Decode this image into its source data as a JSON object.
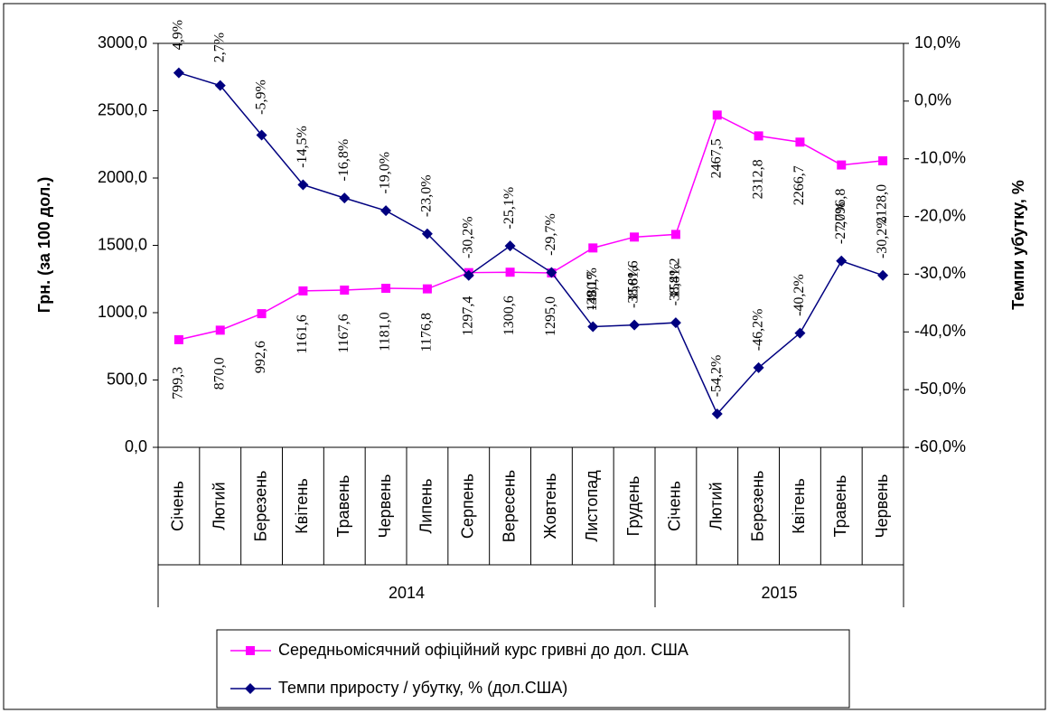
{
  "chart_data": {
    "type": "line",
    "categories": [
      "Січень",
      "Лютий",
      "Березень",
      "Квітень",
      "Травень",
      "Червень",
      "Липень",
      "Серпень",
      "Вересень",
      "Жовтень",
      "Листопад",
      "Грудень",
      "Січень",
      "Лютий",
      "Березень",
      "Квітень",
      "Травень",
      "Червень"
    ],
    "year_groups": [
      {
        "label": "2014",
        "span": 12
      },
      {
        "label": "2015",
        "span": 6
      }
    ],
    "ylabel": "Грн. (за 100 дол.)",
    "y2label": "Темпи убутку, %",
    "ylim": [
      0,
      3000
    ],
    "yticks": [
      {
        "value": 0,
        "label": "0,0"
      },
      {
        "value": 500,
        "label": "500,0"
      },
      {
        "value": 1000,
        "label": "1000,0"
      },
      {
        "value": 1500,
        "label": "1500,0"
      },
      {
        "value": 2000,
        "label": "2000,0"
      },
      {
        "value": 2500,
        "label": "2500,0"
      },
      {
        "value": 3000,
        "label": "3000,0"
      }
    ],
    "y2lim": [
      -60,
      10
    ],
    "y2ticks": [
      {
        "value": -60,
        "label": "-60,0%"
      },
      {
        "value": -50,
        "label": "-50,0%"
      },
      {
        "value": -40,
        "label": "-40,0%"
      },
      {
        "value": -30,
        "label": "-30,0%"
      },
      {
        "value": -20,
        "label": "-20,0%"
      },
      {
        "value": -10,
        "label": "-10,0%"
      },
      {
        "value": 0,
        "label": "0,0%"
      },
      {
        "value": 10,
        "label": "10,0%"
      }
    ],
    "grid": false,
    "legend": "bottom",
    "series": [
      {
        "name": "Середньомісячний офіційний курс гривні до дол. США",
        "color": "#ff00ff",
        "marker": "square",
        "values": [
          799.3,
          870.0,
          992.6,
          1161.6,
          1167.6,
          1181.0,
          1176.8,
          1297.4,
          1300.6,
          1295.0,
          1480.7,
          1561.6,
          1581.2,
          2467.5,
          2312.8,
          2266.7,
          2096.8,
          2128.0
        ],
        "value_labels": [
          "799,3",
          "870,0",
          "992,6",
          "1161,6",
          "1167,6",
          "1181,0",
          "1176,8",
          "1297,4",
          "1300,6",
          "1295,0",
          "1480,7",
          "1561,6",
          "1581,2",
          "2467,5",
          "2312,8",
          "2266,7",
          "2096,8",
          "2128,0"
        ]
      },
      {
        "name": "Темпи приросту / убутку, % (дол.США)",
        "color": "#000080",
        "marker": "diamond",
        "axis": "y2",
        "values": [
          4.9,
          2.7,
          -5.9,
          -14.5,
          -16.8,
          -19.0,
          -23.0,
          -30.2,
          -25.1,
          -29.7,
          -39.1,
          -38.8,
          -38.4,
          -54.2,
          -46.2,
          -40.2,
          -27.7,
          -30.2
        ],
        "value_labels": [
          "4,9%",
          "2,7%",
          "-5,9%",
          "-14,5%",
          "-16,8%",
          "-19,0%",
          "-23,0%",
          "-30,2%",
          "-25,1%",
          "-29,7%",
          "-39,1%",
          "-38,8%",
          "-38,4%",
          "-54,2%",
          "-46,2%",
          "-40,2%",
          "-27,7%",
          "-30,2%"
        ]
      }
    ]
  }
}
